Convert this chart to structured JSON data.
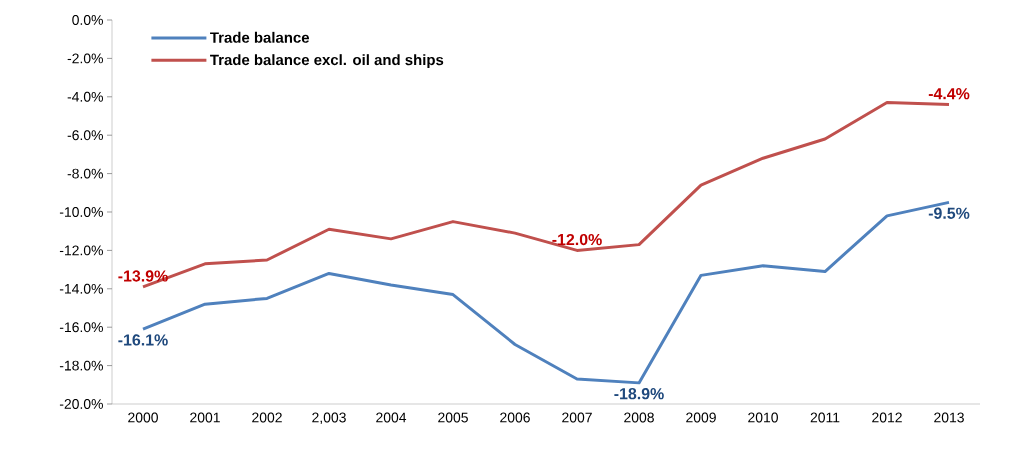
{
  "chart_data": {
    "type": "line",
    "categories": [
      "2000",
      "2001",
      "2002",
      "2,003",
      "2004",
      "2005",
      "2006",
      "2007",
      "2008",
      "2009",
      "2010",
      "2011",
      "2012",
      "2013"
    ],
    "series": [
      {
        "name": "Trade balance",
        "color": "#4f81bd",
        "values": [
          -16.1,
          -14.8,
          -14.5,
          -13.2,
          -13.8,
          -14.3,
          -16.9,
          -18.7,
          -18.9,
          -13.3,
          -12.8,
          -13.1,
          -10.2,
          -9.5
        ],
        "value_labels": [
          "-16.1%",
          null,
          null,
          null,
          null,
          null,
          null,
          null,
          "-18.9%",
          null,
          null,
          null,
          null,
          "-9.5%"
        ]
      },
      {
        "name": "Trade balance excl. oil and ships",
        "color": "#c0504d",
        "values": [
          -13.9,
          -12.7,
          -12.5,
          -10.9,
          -11.4,
          -10.5,
          -11.1,
          -12.0,
          -11.7,
          -8.6,
          -7.2,
          -6.2,
          -4.3,
          -4.4
        ],
        "value_labels": [
          "-13.9%",
          null,
          null,
          null,
          null,
          null,
          null,
          "-12.0%",
          null,
          null,
          null,
          null,
          null,
          "-4.4%"
        ]
      }
    ],
    "ylim": [
      -20,
      0
    ],
    "yticks": [
      {
        "value": 0,
        "label": "0.0%"
      },
      {
        "value": -2,
        "label": "-2.0%"
      },
      {
        "value": -4,
        "label": "-4.0%"
      },
      {
        "value": -6,
        "label": "-6.0%"
      },
      {
        "value": -8,
        "label": "-8.0%"
      },
      {
        "value": -10,
        "label": "-10.0%"
      },
      {
        "value": -12,
        "label": "-12.0%"
      },
      {
        "value": -14,
        "label": "-14.0%"
      },
      {
        "value": -16,
        "label": "-16.0%"
      },
      {
        "value": -18,
        "label": "-18.0%"
      },
      {
        "value": -20,
        "label": "-20.0%"
      }
    ],
    "grid": false,
    "legend": "top left",
    "marker": "none",
    "line_style": "solid"
  }
}
